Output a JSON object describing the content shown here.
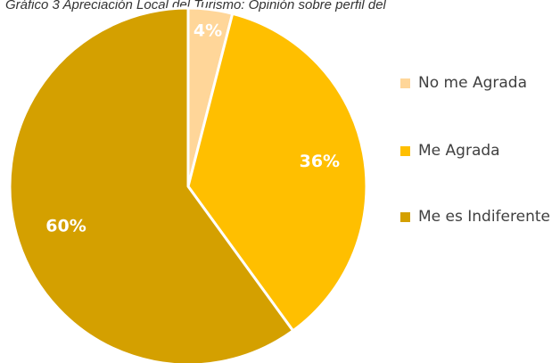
{
  "title": "Gráfico 3 Apreciación Local del Turismo: Opinión sobre perfil del",
  "chart_data": {
    "type": "pie",
    "title": "Gráfico 3 Apreciación Local del Turismo: Opinión sobre perfil del",
    "categories": [
      "No me Agrada",
      "Me Agrada",
      "Me es Indiferente"
    ],
    "values": [
      4,
      36,
      60
    ],
    "labels": [
      "4%",
      "36%",
      "60%"
    ],
    "colors": [
      "#FFD699",
      "#FFBF00",
      "#D4A000"
    ],
    "legend_position": "right"
  },
  "legend": {
    "items": [
      {
        "label": "No me Agrada",
        "color": "#FFD699"
      },
      {
        "label": "Me Agrada",
        "color": "#FFBF00"
      },
      {
        "label": "Me es Indiferente",
        "color": "#D4A000"
      }
    ]
  }
}
